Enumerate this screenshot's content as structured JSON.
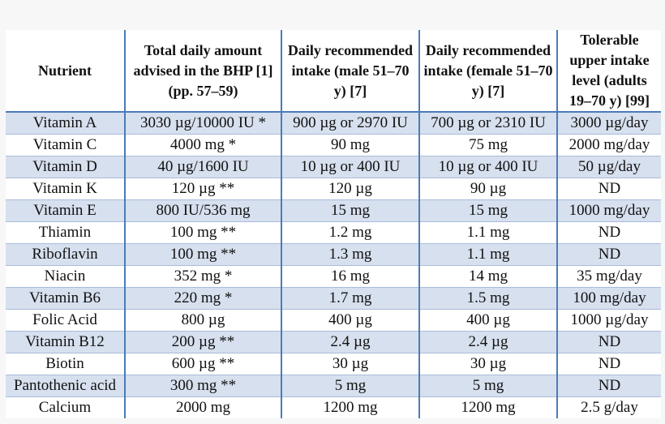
{
  "table": {
    "headers": [
      "Nutrient",
      "Total daily amount advised in the BHP [1] (pp. 57–59)",
      "Daily recommended intake (male 51–70 y) [7]",
      "Daily recommended intake (female 51–70 y) [7]",
      "Tolerable upper intake level (adults 19–70 y) [99]"
    ],
    "rows": [
      [
        "Vitamin A",
        "3030 µg/10000 IU *",
        "900 µg or 2970 IU",
        "700 µg or 2310 IU",
        "3000 µg/day"
      ],
      [
        "Vitamin C",
        "4000 mg *",
        "90 mg",
        "75 mg",
        "2000 mg/day"
      ],
      [
        "Vitamin D",
        "40 µg/1600 IU",
        "10 µg or 400 IU",
        "10 µg or 400 IU",
        "50 µg/day"
      ],
      [
        "Vitamin K",
        "120 µg **",
        "120 µg",
        "90 µg",
        "ND"
      ],
      [
        "Vitamin E",
        "800 IU/536 mg",
        "15 mg",
        "15 mg",
        "1000 mg/day"
      ],
      [
        "Thiamin",
        "100 mg **",
        "1.2 mg",
        "1.1 mg",
        "ND"
      ],
      [
        "Riboflavin",
        "100 mg **",
        "1.3 mg",
        "1.1 mg",
        "ND"
      ],
      [
        "Niacin",
        "352 mg *",
        "16 mg",
        "14 mg",
        "35 mg/day"
      ],
      [
        "Vitamin B6",
        "220 mg *",
        "1.7 mg",
        "1.5 mg",
        "100 mg/day"
      ],
      [
        "Folic Acid",
        "800 µg",
        "400 µg",
        "400 µg",
        "1000 µg/day"
      ],
      [
        "Vitamin B12",
        "200 µg **",
        "2.4 µg",
        "2.4 µg",
        "ND"
      ],
      [
        "Biotin",
        "600 µg **",
        "30 µg",
        "30 µg",
        "ND"
      ],
      [
        "Pantothenic acid",
        "300 mg **",
        "5 mg",
        "5 mg",
        "ND"
      ],
      [
        "Calcium",
        "2000 mg",
        "1200 mg",
        "1200 mg",
        "2.5 g/day"
      ]
    ]
  },
  "colors": {
    "rule": "#4a7cb8",
    "row_shade": "#d7e0ee",
    "row_rule": "#a8bcd9"
  }
}
